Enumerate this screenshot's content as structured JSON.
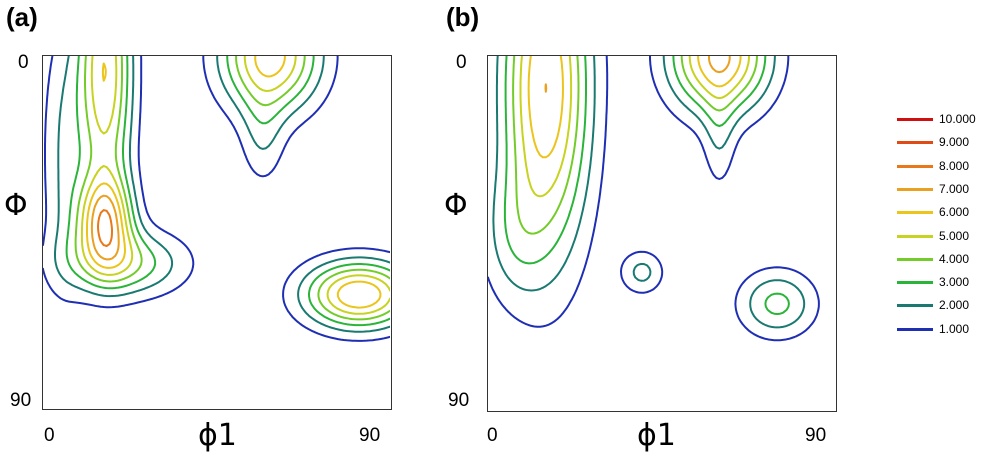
{
  "chart_data": {
    "type": "contour",
    "levels": [
      10,
      9,
      8,
      7,
      6,
      5,
      4,
      3,
      2,
      1
    ],
    "level_labels": [
      "10.000",
      "9.000",
      "8.000",
      "7.000",
      "6.000",
      "5.000",
      "4.000",
      "3.000",
      "2.000",
      "1.000"
    ],
    "level_colors": [
      "#d01010",
      "#e04a14",
      "#e8781a",
      "#eaa020",
      "#ebc41c",
      "#c8d220",
      "#74cc2a",
      "#2ab43a",
      "#1a7a72",
      "#1f2fb4"
    ],
    "xlabel": "ϕ1",
    "ylabel": "Φ",
    "xlim": [
      0,
      90
    ],
    "ylim": [
      0,
      90
    ],
    "x_ticks": [
      "0",
      "90"
    ],
    "y_ticks": [
      "0",
      "90"
    ],
    "panels": [
      {
        "label": "(a)",
        "peaks": [
          {
            "x": 16,
            "y": 4,
            "a": 6.0,
            "sx": 5,
            "sy": 24
          },
          {
            "x": 16,
            "y": 42,
            "a": 6.0,
            "sx": 5,
            "sy": 8
          },
          {
            "x": 21,
            "y": 53,
            "a": 3.8,
            "sx": 11,
            "sy": 6
          },
          {
            "x": 5,
            "y": 25,
            "a": 1.8,
            "sx": 4,
            "sy": 24
          },
          {
            "x": 59,
            "y": 0,
            "a": 6.5,
            "sx": 9,
            "sy": 10
          },
          {
            "x": 57,
            "y": 21,
            "a": 1.7,
            "sx": 4,
            "sy": 9
          },
          {
            "x": 82,
            "y": 61,
            "a": 7.0,
            "sx": 10,
            "sy": 6
          }
        ]
      },
      {
        "label": "(b)",
        "peaks": [
          {
            "x": 15,
            "y": 8,
            "a": 7.0,
            "sx": 8,
            "sy": 30
          },
          {
            "x": 6,
            "y": 46,
            "a": 1.6,
            "sx": 6,
            "sy": 12
          },
          {
            "x": 40,
            "y": 55,
            "a": 2.3,
            "sx": 4,
            "sy": 4
          },
          {
            "x": 60,
            "y": 0,
            "a": 7.2,
            "sx": 9,
            "sy": 10
          },
          {
            "x": 60,
            "y": 21,
            "a": 1.6,
            "sx": 3,
            "sy": 10
          },
          {
            "x": 75,
            "y": 63,
            "a": 3.3,
            "sx": 7,
            "sy": 6
          }
        ]
      }
    ]
  }
}
